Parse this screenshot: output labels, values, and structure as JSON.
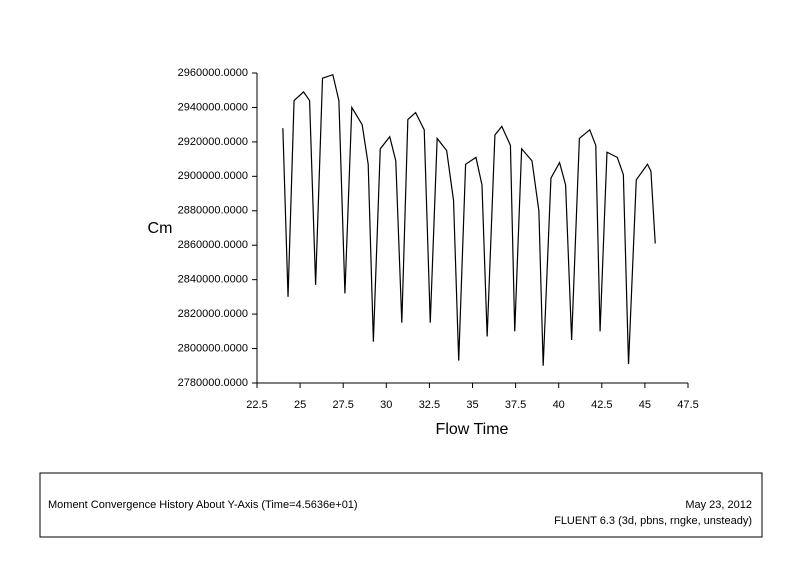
{
  "chart_data": {
    "type": "line",
    "y_label": "Cm",
    "x_label": "Flow Time",
    "footer_title": "Moment Convergence History About Y-Axis  (Time=4.5636e+01)",
    "footer_date": "May 23, 2012",
    "footer_solver": "FLUENT 6.3 (3d, pbns, rngke, unsteady)",
    "x": [
      24.0,
      24.3,
      24.65,
      25.2,
      25.55,
      25.9,
      26.3,
      26.9,
      27.25,
      27.6,
      28.0,
      28.6,
      28.95,
      29.25,
      29.65,
      30.2,
      30.55,
      30.9,
      31.25,
      31.7,
      32.2,
      32.55,
      32.95,
      33.5,
      33.9,
      34.2,
      34.6,
      35.2,
      35.55,
      35.85,
      36.3,
      36.7,
      37.2,
      37.45,
      37.85,
      38.45,
      38.85,
      39.1,
      39.55,
      40.05,
      40.4,
      40.75,
      41.2,
      41.8,
      42.15,
      42.4,
      42.8,
      43.4,
      43.75,
      44.05,
      44.5,
      45.15,
      45.35,
      45.6
    ],
    "series": [
      {
        "color": "#000000",
        "values": [
          2928000,
          2830000,
          2944000,
          2949000,
          2944000,
          2837000,
          2957000,
          2959000,
          2944000,
          2832000,
          2940000,
          2930000,
          2907000,
          2804000,
          2916000,
          2923000,
          2909000,
          2815000,
          2933000,
          2937000,
          2927000,
          2815000,
          2922000,
          2915000,
          2886000,
          2793000,
          2907000,
          2911000,
          2895000,
          2807000,
          2924000,
          2929000,
          2918000,
          2810000,
          2916000,
          2909000,
          2880000,
          2790000,
          2899000,
          2908000,
          2895000,
          2805000,
          2922000,
          2927000,
          2918000,
          2810000,
          2914000,
          2911000,
          2901000,
          2791000,
          2898000,
          2907000,
          2903000,
          2861000
        ]
      }
    ],
    "xlim": [
      22.5,
      47.5
    ],
    "xticks": [
      22.5,
      25,
      27.5,
      30,
      32.5,
      35,
      37.5,
      40,
      42.5,
      45,
      47.5
    ],
    "ylim": [
      2780000,
      2960000
    ],
    "yticks": [
      {
        "value": 2780000,
        "label": "2780000.0000"
      },
      {
        "value": 2800000,
        "label": "2800000.0000"
      },
      {
        "value": 2820000,
        "label": "2820000.0000"
      },
      {
        "value": 2840000,
        "label": "2840000.0000"
      },
      {
        "value": 2860000,
        "label": "2860000.0000"
      },
      {
        "value": 2880000,
        "label": "2880000.0000"
      },
      {
        "value": 2900000,
        "label": "2900000.0000"
      },
      {
        "value": 2920000,
        "label": "2920000.0000"
      },
      {
        "value": 2940000,
        "label": "2940000.0000"
      },
      {
        "value": 2960000,
        "label": "2960000.0000"
      }
    ]
  }
}
